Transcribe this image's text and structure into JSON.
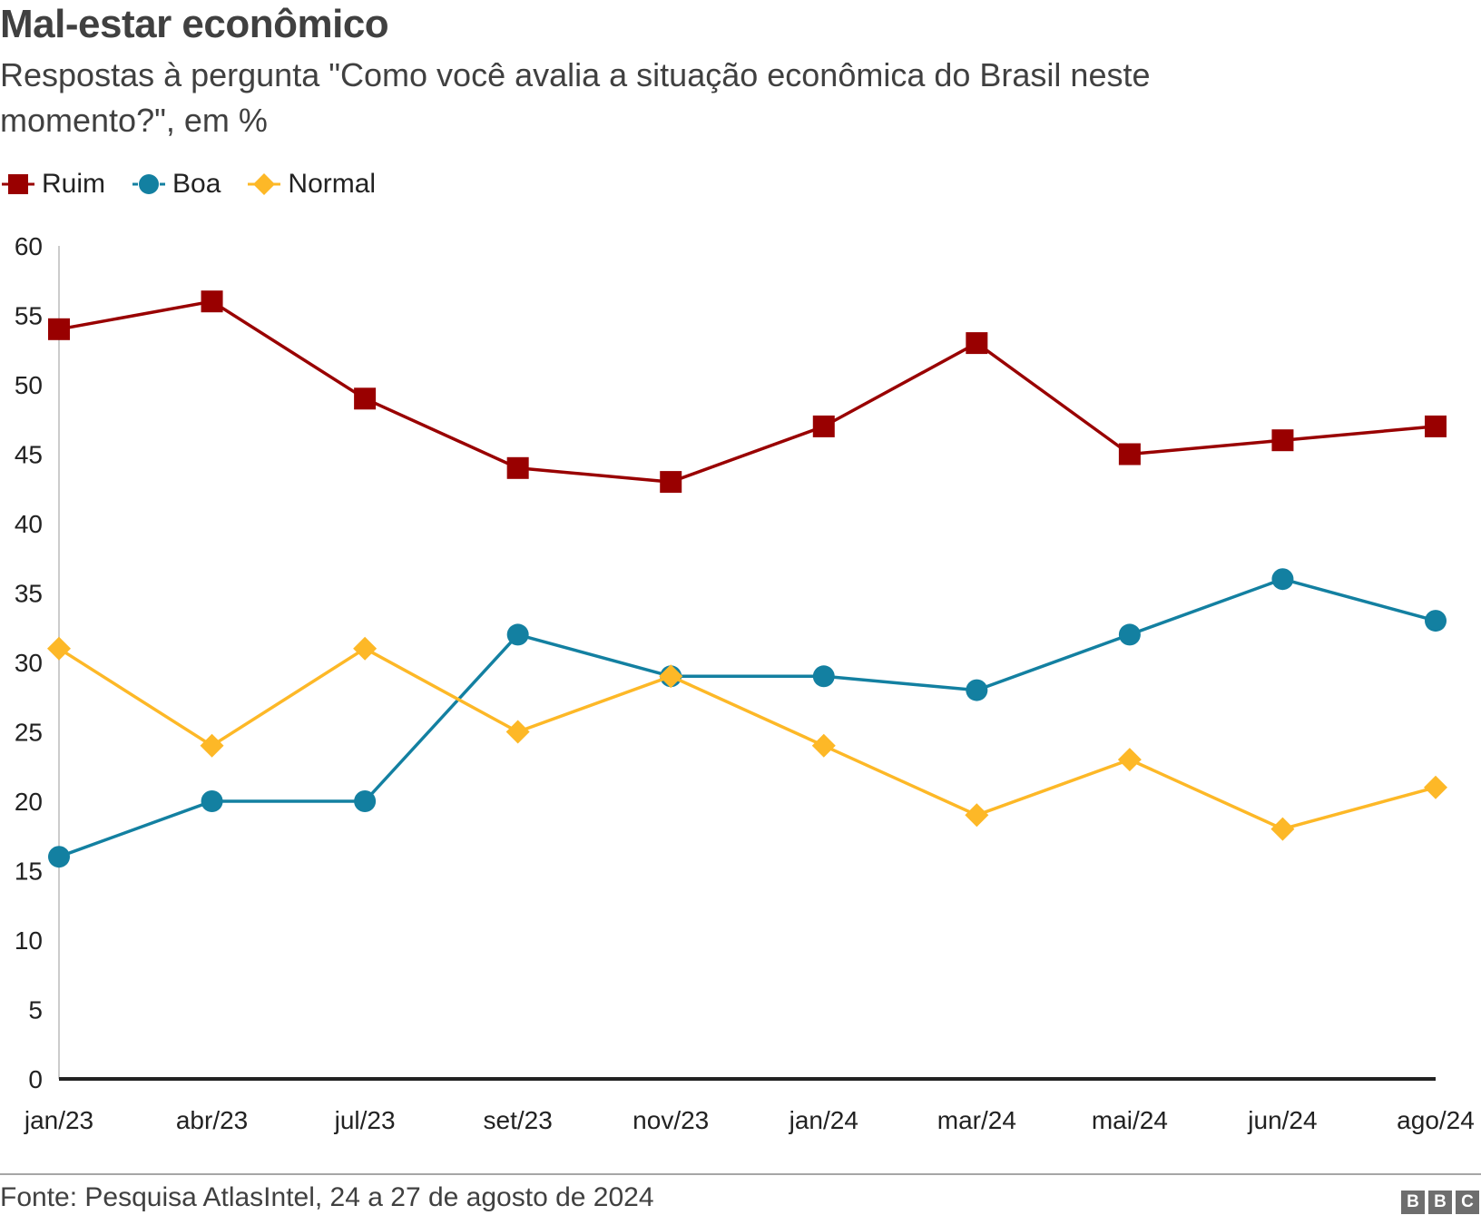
{
  "chart_data": {
    "type": "line",
    "title": "Mal-estar econômico",
    "subtitle": "Respostas à pergunta \"Como você avalia a situação econômica do Brasil neste momento?\", em %",
    "categories": [
      "jan/23",
      "abr/23",
      "jul/23",
      "set/23",
      "nov/23",
      "jan/24",
      "mar/24",
      "mai/24",
      "jun/24",
      "ago/24"
    ],
    "series": [
      {
        "name": "Ruim",
        "color": "#990000",
        "marker": "square",
        "values": [
          54,
          56,
          49,
          44,
          43,
          47,
          53,
          45,
          46,
          47
        ]
      },
      {
        "name": "Boa",
        "color": "#1380a1",
        "marker": "circle",
        "values": [
          16,
          20,
          20,
          32,
          29,
          29,
          28,
          32,
          36,
          33
        ]
      },
      {
        "name": "Normal",
        "color": "#fdb827",
        "marker": "diamond",
        "values": [
          31,
          24,
          31,
          25,
          29,
          24,
          19,
          23,
          18,
          21
        ]
      }
    ],
    "ylim": [
      0,
      60
    ],
    "yticks": [
      0,
      5,
      10,
      15,
      20,
      25,
      30,
      35,
      40,
      45,
      50,
      55,
      60
    ],
    "xlabel": "",
    "ylabel": "",
    "grid": false,
    "legend_position": "top-left"
  },
  "footer": {
    "source": "Fonte: Pesquisa AtlasIntel, 24 a 27 de agosto de 2024",
    "logo_letters": [
      "B",
      "B",
      "C"
    ]
  }
}
